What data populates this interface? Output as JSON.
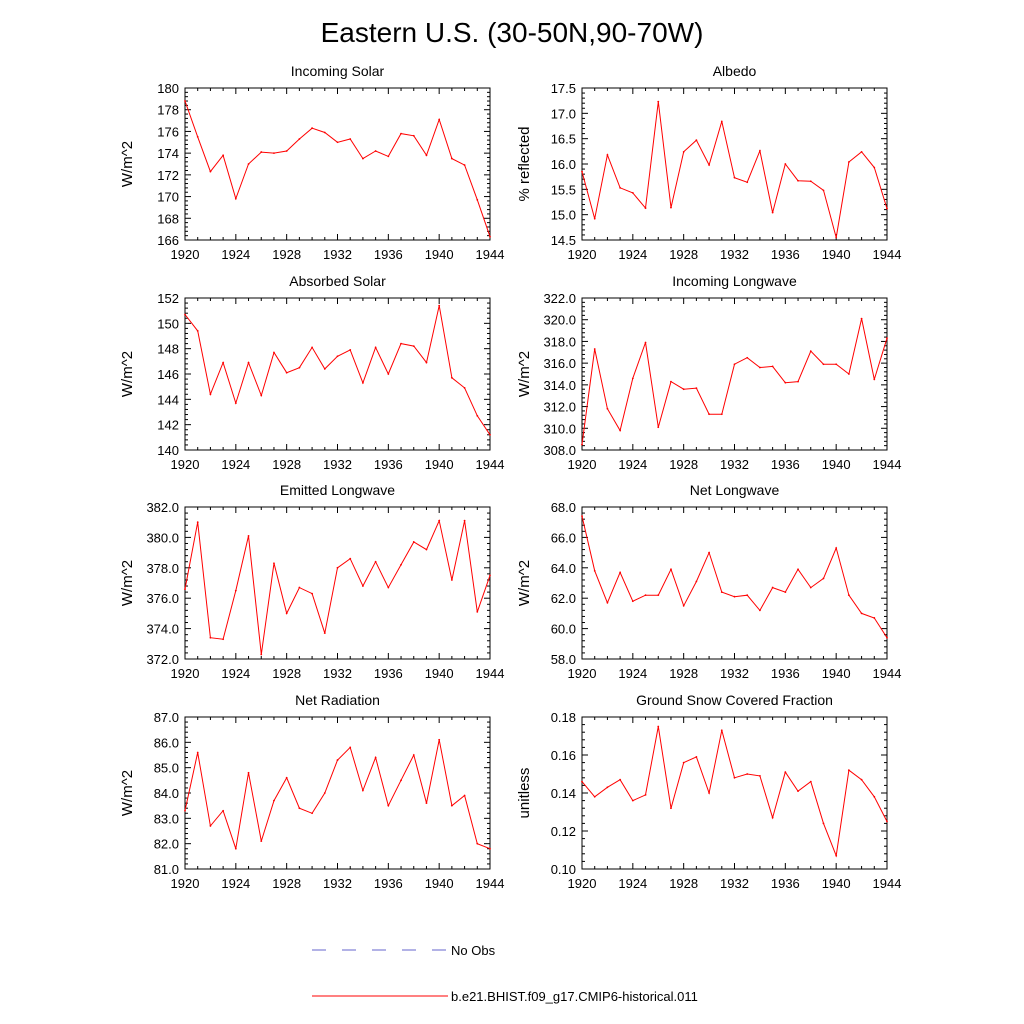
{
  "figure": {
    "title": "Eastern U.S. (30-50N,90-70W)"
  },
  "colors": {
    "model": "#ff0000",
    "obs": "#6666cc",
    "axis": "#000000"
  },
  "legend": {
    "placement": "bottom-center",
    "entries": [
      {
        "label": "No Obs",
        "style": "dashed",
        "color": "#6666cc"
      },
      {
        "label": "b.e21.BHIST.f09_g17.CMIP6-historical.011",
        "style": "solid",
        "color": "#ff0000"
      }
    ]
  },
  "chart_data": [
    {
      "type": "line",
      "title": "Incoming Solar",
      "ylabel": "W/m^2",
      "xlabel": "",
      "xlim": [
        1920,
        1944
      ],
      "ylim": [
        166,
        180
      ],
      "xticks": [
        "1920",
        "1924",
        "1928",
        "1932",
        "1936",
        "1940",
        "1944"
      ],
      "yticks": [
        "166",
        "168",
        "170",
        "172",
        "174",
        "176",
        "178",
        "180"
      ],
      "x": [
        1920,
        1921,
        1922,
        1923,
        1924,
        1925,
        1926,
        1927,
        1928,
        1929,
        1930,
        1931,
        1932,
        1933,
        1934,
        1935,
        1936,
        1937,
        1938,
        1939,
        1940,
        1941,
        1942,
        1943,
        1944
      ],
      "series": [
        {
          "name": "b.e21.BHIST.f09_g17.CMIP6-historical.011",
          "values": [
            178.8,
            175.5,
            172.3,
            173.8,
            169.8,
            173.0,
            174.1,
            174.0,
            174.2,
            175.3,
            176.3,
            175.9,
            175.0,
            175.3,
            173.5,
            174.2,
            173.7,
            175.8,
            175.6,
            173.8,
            177.1,
            173.5,
            172.9,
            169.7,
            166.3
          ]
        }
      ]
    },
    {
      "type": "line",
      "title": "Albedo",
      "ylabel": "% reflected",
      "xlabel": "",
      "xlim": [
        1920,
        1944
      ],
      "ylim": [
        14.5,
        17.5
      ],
      "xticks": [
        "1920",
        "1924",
        "1928",
        "1932",
        "1936",
        "1940",
        "1944"
      ],
      "yticks": [
        "14.5",
        "15.0",
        "15.5",
        "16.0",
        "16.5",
        "17.0",
        "17.5"
      ],
      "x": [
        1920,
        1921,
        1922,
        1923,
        1924,
        1925,
        1926,
        1927,
        1928,
        1929,
        1930,
        1931,
        1932,
        1933,
        1934,
        1935,
        1936,
        1937,
        1938,
        1939,
        1940,
        1941,
        1942,
        1943,
        1944
      ],
      "series": [
        {
          "name": "b.e21.BHIST.f09_g17.CMIP6-historical.011",
          "values": [
            15.85,
            14.92,
            16.18,
            15.53,
            15.43,
            15.13,
            17.23,
            15.14,
            16.24,
            16.47,
            15.98,
            16.84,
            15.73,
            15.64,
            16.26,
            15.04,
            16.0,
            15.67,
            15.66,
            15.48,
            14.55,
            16.04,
            16.24,
            15.93,
            15.12
          ]
        }
      ]
    },
    {
      "type": "line",
      "title": "Absorbed Solar",
      "ylabel": "W/m^2",
      "xlabel": "",
      "xlim": [
        1920,
        1944
      ],
      "ylim": [
        140,
        152
      ],
      "xticks": [
        "1920",
        "1924",
        "1928",
        "1932",
        "1936",
        "1940",
        "1944"
      ],
      "yticks": [
        "140",
        "142",
        "144",
        "146",
        "148",
        "150",
        "152"
      ],
      "x": [
        1920,
        1921,
        1922,
        1923,
        1924,
        1925,
        1926,
        1927,
        1928,
        1929,
        1930,
        1931,
        1932,
        1933,
        1934,
        1935,
        1936,
        1937,
        1938,
        1939,
        1940,
        1941,
        1942,
        1943,
        1944
      ],
      "series": [
        {
          "name": "b.e21.BHIST.f09_g17.CMIP6-historical.011",
          "values": [
            150.7,
            149.4,
            144.4,
            146.9,
            143.7,
            146.9,
            144.3,
            147.7,
            146.1,
            146.5,
            148.1,
            146.4,
            147.4,
            147.9,
            145.3,
            148.1,
            146.0,
            148.4,
            148.2,
            146.9,
            151.4,
            145.7,
            144.9,
            142.7,
            141.2
          ]
        }
      ]
    },
    {
      "type": "line",
      "title": "Incoming Longwave",
      "ylabel": "W/m^2",
      "xlabel": "",
      "xlim": [
        1920,
        1944
      ],
      "ylim": [
        308.0,
        322.0
      ],
      "xticks": [
        "1920",
        "1924",
        "1928",
        "1932",
        "1936",
        "1940",
        "1944"
      ],
      "yticks": [
        "308.0",
        "310.0",
        "312.0",
        "314.0",
        "316.0",
        "318.0",
        "320.0",
        "322.0"
      ],
      "x": [
        1920,
        1921,
        1922,
        1923,
        1924,
        1925,
        1926,
        1927,
        1928,
        1929,
        1930,
        1931,
        1932,
        1933,
        1934,
        1935,
        1936,
        1937,
        1938,
        1939,
        1940,
        1941,
        1942,
        1943,
        1944
      ],
      "series": [
        {
          "name": "b.e21.BHIST.f09_g17.CMIP6-historical.011",
          "values": [
            308.5,
            317.3,
            311.8,
            309.8,
            314.6,
            317.9,
            310.1,
            314.3,
            313.6,
            313.7,
            311.3,
            311.3,
            315.9,
            316.5,
            315.6,
            315.7,
            314.2,
            314.3,
            317.1,
            315.9,
            315.9,
            315.0,
            320.1,
            314.5,
            318.3
          ]
        }
      ]
    },
    {
      "type": "line",
      "title": "Emitted Longwave",
      "ylabel": "W/m^2",
      "xlabel": "",
      "xlim": [
        1920,
        1944
      ],
      "ylim": [
        372.0,
        382.0
      ],
      "xticks": [
        "1920",
        "1924",
        "1928",
        "1932",
        "1936",
        "1940",
        "1944"
      ],
      "yticks": [
        "372.0",
        "374.0",
        "376.0",
        "378.0",
        "380.0",
        "382.0"
      ],
      "x": [
        1920,
        1921,
        1922,
        1923,
        1924,
        1925,
        1926,
        1927,
        1928,
        1929,
        1930,
        1931,
        1932,
        1933,
        1934,
        1935,
        1936,
        1937,
        1938,
        1939,
        1940,
        1941,
        1942,
        1943,
        1944
      ],
      "series": [
        {
          "name": "b.e21.BHIST.f09_g17.CMIP6-historical.011",
          "values": [
            376.6,
            381.0,
            373.4,
            373.3,
            376.5,
            380.1,
            372.3,
            378.3,
            375.0,
            376.7,
            376.3,
            373.7,
            378.0,
            378.6,
            376.8,
            378.4,
            376.7,
            378.2,
            379.7,
            379.2,
            381.1,
            377.2,
            381.1,
            375.1,
            377.5
          ]
        }
      ]
    },
    {
      "type": "line",
      "title": "Net Longwave",
      "ylabel": "W/m^2",
      "xlabel": "",
      "xlim": [
        1920,
        1944
      ],
      "ylim": [
        58.0,
        68.0
      ],
      "xticks": [
        "1920",
        "1924",
        "1928",
        "1932",
        "1936",
        "1940",
        "1944"
      ],
      "yticks": [
        "58.0",
        "60.0",
        "62.0",
        "64.0",
        "66.0",
        "68.0"
      ],
      "x": [
        1920,
        1921,
        1922,
        1923,
        1924,
        1925,
        1926,
        1927,
        1928,
        1929,
        1930,
        1931,
        1932,
        1933,
        1934,
        1935,
        1936,
        1937,
        1938,
        1939,
        1940,
        1941,
        1942,
        1943,
        1944
      ],
      "series": [
        {
          "name": "b.e21.BHIST.f09_g17.CMIP6-historical.011",
          "values": [
            67.4,
            63.8,
            61.7,
            63.7,
            61.8,
            62.2,
            62.2,
            63.9,
            61.5,
            63.1,
            65.0,
            62.4,
            62.1,
            62.2,
            61.2,
            62.7,
            62.4,
            63.9,
            62.7,
            63.3,
            65.3,
            62.2,
            61.0,
            60.7,
            59.4
          ]
        }
      ]
    },
    {
      "type": "line",
      "title": "Net Radiation",
      "ylabel": "W/m^2",
      "xlabel": "",
      "xlim": [
        1920,
        1944
      ],
      "ylim": [
        81.0,
        87.0
      ],
      "xticks": [
        "1920",
        "1924",
        "1928",
        "1932",
        "1936",
        "1940",
        "1944"
      ],
      "yticks": [
        "81.0",
        "82.0",
        "83.0",
        "84.0",
        "85.0",
        "86.0",
        "87.0"
      ],
      "x": [
        1920,
        1921,
        1922,
        1923,
        1924,
        1925,
        1926,
        1927,
        1928,
        1929,
        1930,
        1931,
        1932,
        1933,
        1934,
        1935,
        1936,
        1937,
        1938,
        1939,
        1940,
        1941,
        1942,
        1943,
        1944
      ],
      "series": [
        {
          "name": "b.e21.BHIST.f09_g17.CMIP6-historical.011",
          "values": [
            83.3,
            85.6,
            82.7,
            83.3,
            81.8,
            84.8,
            82.1,
            83.7,
            84.6,
            83.4,
            83.2,
            84.0,
            85.3,
            85.8,
            84.1,
            85.4,
            83.5,
            84.5,
            85.5,
            83.6,
            86.1,
            83.5,
            83.9,
            82.0,
            81.8
          ]
        }
      ]
    },
    {
      "type": "line",
      "title": "Ground Snow Covered Fraction",
      "ylabel": "unitless",
      "xlabel": "",
      "xlim": [
        1920,
        1944
      ],
      "ylim": [
        0.1,
        0.18
      ],
      "xticks": [
        "1920",
        "1924",
        "1928",
        "1932",
        "1936",
        "1940",
        "1944"
      ],
      "yticks": [
        "0.10",
        "0.12",
        "0.14",
        "0.16",
        "0.18"
      ],
      "x": [
        1920,
        1921,
        1922,
        1923,
        1924,
        1925,
        1926,
        1927,
        1928,
        1929,
        1930,
        1931,
        1932,
        1933,
        1934,
        1935,
        1936,
        1937,
        1938,
        1939,
        1940,
        1941,
        1942,
        1943,
        1944
      ],
      "series": [
        {
          "name": "b.e21.BHIST.f09_g17.CMIP6-historical.011",
          "values": [
            0.146,
            0.138,
            0.143,
            0.147,
            0.136,
            0.139,
            0.175,
            0.132,
            0.156,
            0.159,
            0.14,
            0.173,
            0.148,
            0.15,
            0.149,
            0.127,
            0.151,
            0.141,
            0.146,
            0.124,
            0.107,
            0.152,
            0.147,
            0.138,
            0.125
          ]
        }
      ]
    }
  ]
}
